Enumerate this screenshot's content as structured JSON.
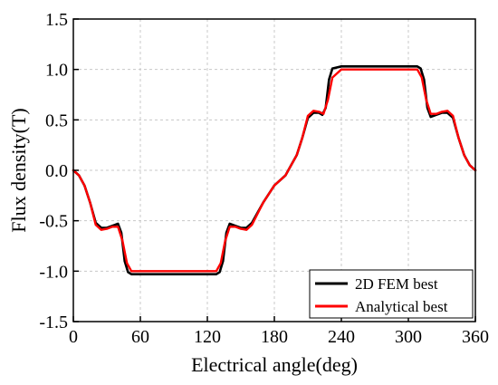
{
  "chart_data": {
    "type": "line",
    "title": "",
    "xlabel": "Electrical angle(deg)",
    "ylabel": "Flux density(T)",
    "xlim": [
      0,
      360
    ],
    "ylim": [
      -1.5,
      1.5
    ],
    "xticks": [
      0,
      60,
      120,
      180,
      240,
      300,
      360
    ],
    "xtick_labels": [
      "0",
      "60",
      "120",
      "180",
      "240",
      "300",
      "360"
    ],
    "yticks": [
      -1.5,
      -1.0,
      -0.5,
      0.0,
      0.5,
      1.0,
      1.5
    ],
    "ytick_labels": [
      "-1.5",
      "-1.0",
      "-0.5",
      "0.0",
      "0.5",
      "1.0",
      "1.5"
    ],
    "grid": true,
    "legend_position": "bottom-right",
    "series": [
      {
        "name": "2D FEM best",
        "color": "#000000",
        "x": [
          0,
          5,
          10,
          15,
          20,
          25,
          30,
          35,
          40,
          43,
          46,
          49,
          52,
          60,
          80,
          100,
          120,
          128,
          131,
          134,
          137,
          140,
          145,
          150,
          155,
          160,
          170,
          180,
          190,
          195,
          200,
          205,
          210,
          215,
          220,
          223,
          226,
          229,
          232,
          240,
          260,
          280,
          300,
          308,
          311,
          314,
          317,
          320,
          325,
          330,
          335,
          340,
          345,
          350,
          355,
          360
        ],
        "y": [
          0.0,
          -0.05,
          -0.15,
          -0.32,
          -0.52,
          -0.57,
          -0.57,
          -0.55,
          -0.53,
          -0.62,
          -0.9,
          -1.01,
          -1.03,
          -1.03,
          -1.03,
          -1.03,
          -1.03,
          -1.03,
          -1.01,
          -0.9,
          -0.62,
          -0.53,
          -0.55,
          -0.57,
          -0.57,
          -0.52,
          -0.32,
          -0.15,
          -0.05,
          0.05,
          0.15,
          0.32,
          0.52,
          0.57,
          0.57,
          0.55,
          0.62,
          0.9,
          1.01,
          1.03,
          1.03,
          1.03,
          1.03,
          1.03,
          1.01,
          0.9,
          0.62,
          0.53,
          0.55,
          0.57,
          0.57,
          0.52,
          0.32,
          0.15,
          0.05,
          0.0
        ]
      },
      {
        "name": "Analytical best",
        "color": "#ff0000",
        "x": [
          0,
          5,
          10,
          15,
          20,
          25,
          30,
          35,
          40,
          44,
          48,
          52,
          60,
          80,
          100,
          120,
          128,
          132,
          136,
          140,
          145,
          150,
          155,
          160,
          170,
          180,
          190,
          195,
          200,
          205,
          210,
          215,
          220,
          224,
          228,
          232,
          240,
          260,
          280,
          300,
          308,
          312,
          316,
          320,
          325,
          330,
          335,
          340,
          345,
          350,
          355,
          360
        ],
        "y": [
          0.0,
          -0.05,
          -0.15,
          -0.32,
          -0.54,
          -0.59,
          -0.58,
          -0.56,
          -0.56,
          -0.7,
          -0.92,
          -1.0,
          -1.0,
          -1.0,
          -1.0,
          -1.0,
          -1.0,
          -0.92,
          -0.7,
          -0.56,
          -0.56,
          -0.58,
          -0.59,
          -0.54,
          -0.32,
          -0.15,
          -0.05,
          0.05,
          0.15,
          0.32,
          0.54,
          0.59,
          0.58,
          0.56,
          0.7,
          0.92,
          1.0,
          1.0,
          1.0,
          1.0,
          1.0,
          0.92,
          0.7,
          0.56,
          0.56,
          0.58,
          0.59,
          0.54,
          0.32,
          0.15,
          0.05,
          0.0
        ]
      }
    ]
  }
}
